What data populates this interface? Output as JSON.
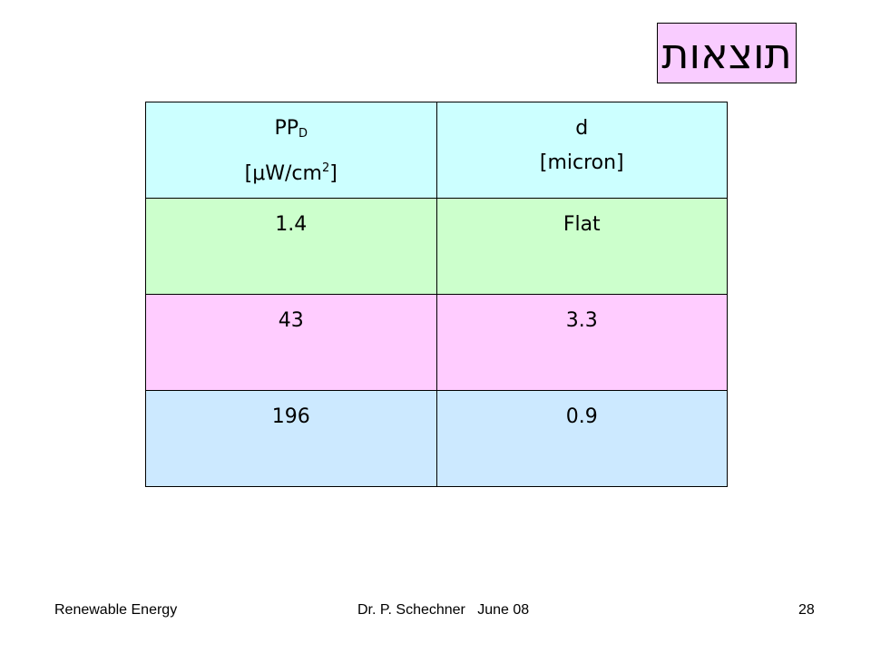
{
  "slide": {
    "title": "תוצאות",
    "table": {
      "header": {
        "col1": {
          "line1_main": "PP",
          "line1_sub": "D",
          "line2_pre": "[",
          "mu": "μ",
          "line2_unit": "W/cm",
          "line2_sup": "2",
          "line2_post": "]"
        },
        "col2": {
          "line1": "d",
          "line2": "[micron]"
        }
      },
      "rows": [
        {
          "ppd": "1.4",
          "d": "Flat"
        },
        {
          "ppd": "43",
          "d": "3.3"
        },
        {
          "ppd": "196",
          "d": "0.9"
        }
      ]
    },
    "footer": {
      "left": "Renewable Energy",
      "center": "Dr. P. Schechner   June 08",
      "right": "28"
    },
    "colors": {
      "title_bg": "#f9ccff",
      "header_bg": "#ccffff",
      "row1_bg": "#ccffcc",
      "row2_bg": "#ffccff",
      "row3_bg": "#cce9ff"
    }
  }
}
